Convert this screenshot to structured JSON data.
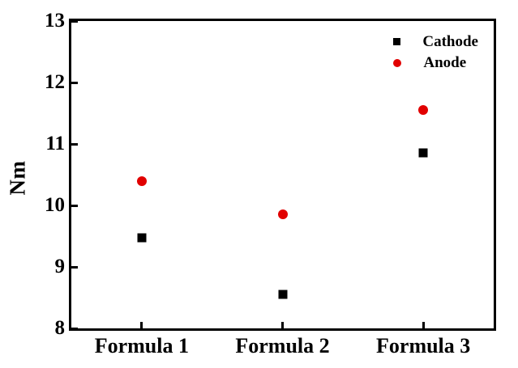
{
  "chart_data": {
    "type": "scatter",
    "title": "",
    "categories": [
      "Formula 1",
      "Formula 2",
      "Formula 3"
    ],
    "series": [
      {
        "name": "Cathode",
        "marker": "square",
        "color": "#000000",
        "values": [
          9.47,
          8.55,
          10.85
        ]
      },
      {
        "name": "Anode",
        "marker": "circle",
        "color": "#e10000",
        "values": [
          10.4,
          9.85,
          11.55
        ]
      }
    ],
    "xlabel": "",
    "ylabel": "Nm",
    "ylim": [
      8,
      13
    ],
    "yticks": [
      8,
      9,
      10,
      11,
      12,
      13
    ],
    "grid": false,
    "legend_position": "top-right-inside",
    "legend_entries": [
      "Cathode",
      "Anode"
    ]
  },
  "colors": {
    "background": "#ffffff",
    "axis": "#000000",
    "cathode": "#000000",
    "anode": "#e10000"
  }
}
